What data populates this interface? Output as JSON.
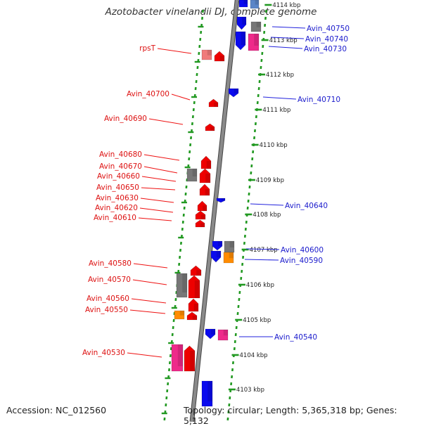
{
  "title": "Azotobacter vinelandii DJ, complete genome",
  "accession": "Accession: NC_012560",
  "summary": "Topology: circular; Length: 5,365,318 bp; Genes: 5,132",
  "colors": {
    "red": "#ee0000",
    "blue": "#0a0aee",
    "gray": "#777777",
    "pink": "#ee2a8a",
    "orange": "#ff8c00",
    "salmon": "#f07a7a",
    "tick": "#229922",
    "backbone": "#8a8a8a",
    "red_label": "#dd1111",
    "blue_label": "#1a1acc"
  },
  "kbp_labels": [
    "4114 kbp",
    "4113 kbp",
    "4112 kbp",
    "4111 kbp",
    "4110 kbp",
    "4109 kbp",
    "4108 kbp",
    "4107 kbp",
    "4106 kbp",
    "4105 kbp",
    "4104 kbp",
    "4103 kbp"
  ],
  "left_genes": [
    "rpsT",
    "Avin_40700",
    "Avin_40690",
    "Avin_40680",
    "Avin_40670",
    "Avin_40660",
    "Avin_40650",
    "Avin_40630",
    "Avin_40620",
    "Avin_40610",
    "Avin_40580",
    "Avin_40570",
    "Avin_40560",
    "Avin_40550",
    "Avin_40530"
  ],
  "right_genes": [
    "Avin_40750",
    "Avin_40740",
    "Avin_40730",
    "Avin_40710",
    "Avin_40640",
    "Avin_40600",
    "Avin_40590",
    "Avin_40540"
  ]
}
